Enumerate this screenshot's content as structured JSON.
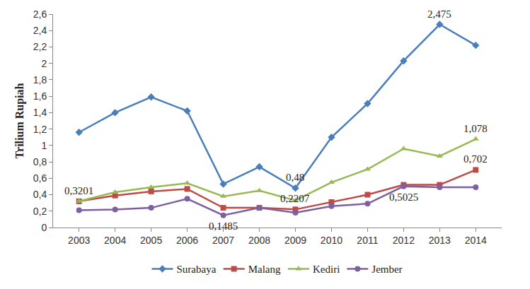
{
  "chart_data": {
    "type": "line",
    "y_label": "Trilium Rupiah",
    "categories": [
      "2003",
      "2004",
      "2005",
      "2006",
      "2007",
      "2008",
      "2009",
      "2010",
      "2011",
      "2012",
      "2013",
      "2014"
    ],
    "series": [
      {
        "name": "Surabaya",
        "color": "#4a7ebb",
        "marker": "diamond",
        "values": [
          1.16,
          1.4,
          1.59,
          1.42,
          0.53,
          0.74,
          0.48,
          1.1,
          1.51,
          2.03,
          2.475,
          2.22
        ]
      },
      {
        "name": "Malang",
        "color": "#be4b48",
        "marker": "square",
        "values": [
          0.32,
          0.39,
          0.44,
          0.47,
          0.24,
          0.24,
          0.2207,
          0.31,
          0.4,
          0.52,
          0.52,
          0.702
        ]
      },
      {
        "name": "Kediri",
        "color": "#98b954",
        "marker": "triangle-up",
        "values": [
          0.3201,
          0.43,
          0.49,
          0.54,
          0.38,
          0.45,
          0.33,
          0.55,
          0.71,
          0.96,
          0.87,
          1.078
        ]
      },
      {
        "name": "Jember",
        "color": "#7d60a0",
        "marker": "circle",
        "values": [
          0.21,
          0.22,
          0.24,
          0.35,
          0.1485,
          0.24,
          0.18,
          0.26,
          0.29,
          0.5025,
          0.49,
          0.49
        ]
      }
    ],
    "annotations": [
      {
        "x": 0,
        "y": 0.3201,
        "text": "0,3201"
      },
      {
        "x": 4,
        "y": 0.1485,
        "text": "0,1485"
      },
      {
        "x": 6,
        "y": 0.48,
        "text": "0,48"
      },
      {
        "x": 6,
        "y": 0.2207,
        "text": "0,2207"
      },
      {
        "x": 9,
        "y": 0.5025,
        "text": "0,5025"
      },
      {
        "x": 10,
        "y": 2.475,
        "text": "2,475"
      },
      {
        "x": 11,
        "y": 1.078,
        "text": "1,078"
      },
      {
        "x": 11,
        "y": 0.702,
        "text": "0,702"
      }
    ],
    "ylim": [
      0,
      2.6
    ],
    "yticks": [
      0,
      {
        "value": 0.2,
        "label": "0,2"
      },
      {
        "value": 0.4,
        "label": "0,4"
      },
      {
        "value": 0.6,
        "label": "0,6"
      },
      {
        "value": 0.8,
        "label": "0,8"
      },
      1,
      {
        "value": 1.2,
        "label": "1,2"
      },
      {
        "value": 1.4,
        "label": "1,4"
      },
      {
        "value": 1.6,
        "label": "1,6"
      },
      {
        "value": 1.8,
        "label": "1,8"
      },
      2,
      {
        "value": 2.2,
        "label": "2,2"
      },
      {
        "value": 2.4,
        "label": "2,4"
      },
      {
        "value": 2.6,
        "label": "2,6"
      }
    ],
    "grid": false,
    "legend": "bottom"
  }
}
